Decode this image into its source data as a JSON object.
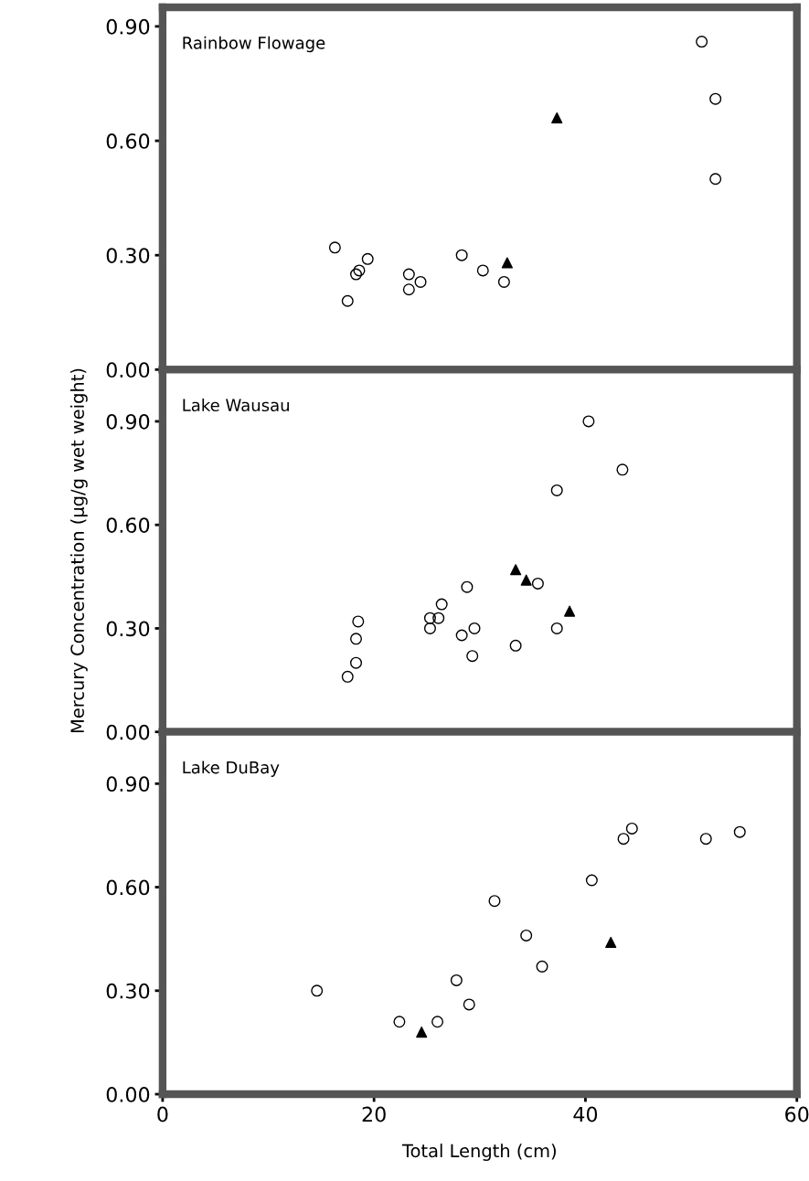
{
  "chart_data": [
    {
      "type": "scatter",
      "title": "Rainbow Flowage",
      "xlim": [
        0,
        60
      ],
      "xticks": [
        0,
        20,
        40,
        60
      ],
      "ylim": [
        0,
        0.95
      ],
      "yticks": [
        {
          "value": 0,
          "label": "0.00"
        },
        {
          "value": 0.3,
          "label": "0.30"
        },
        {
          "value": 0.6,
          "label": "0.60"
        },
        {
          "value": 0.9,
          "label": "0.90"
        }
      ],
      "tick_labels": "y",
      "grid": false,
      "series": [
        {
          "color": "#000000",
          "marker": "circle",
          "x": [
            51.0,
            52.3,
            52.3,
            16.3,
            17.5,
            18.3,
            18.6,
            19.4,
            23.3,
            23.3,
            24.4,
            28.3,
            30.3,
            32.3
          ],
          "values": [
            0.86,
            0.71,
            0.5,
            0.32,
            0.18,
            0.25,
            0.26,
            0.29,
            0.25,
            0.21,
            0.23,
            0.3,
            0.26,
            0.23
          ]
        },
        {
          "color": "#000000",
          "marker": "triangle",
          "x": [
            37.3,
            32.6
          ],
          "values": [
            0.66,
            0.28
          ]
        }
      ]
    },
    {
      "type": "scatter",
      "title": "Lake Wausau",
      "ylabel": "Mercury Concentration (µg/g wet weight)",
      "xlim": [
        0,
        60
      ],
      "xticks": [
        0,
        20,
        40,
        60
      ],
      "ylim": [
        0,
        1.05
      ],
      "yticks": [
        {
          "value": 0,
          "label": "0.00"
        },
        {
          "value": 0.3,
          "label": "0.30"
        },
        {
          "value": 0.6,
          "label": "0.60"
        },
        {
          "value": 0.9,
          "label": "0.90"
        }
      ],
      "tick_labels": "y",
      "grid": false,
      "series": [
        {
          "color": "#000000",
          "marker": "circle",
          "x": [
            40.3,
            43.5,
            37.3,
            35.5,
            28.8,
            26.4,
            25.3,
            26.1,
            25.3,
            18.5,
            18.3,
            18.3,
            17.5,
            28.3,
            29.5,
            29.3,
            33.4,
            37.3
          ],
          "values": [
            0.9,
            0.76,
            0.7,
            0.43,
            0.42,
            0.37,
            0.33,
            0.33,
            0.3,
            0.32,
            0.27,
            0.2,
            0.16,
            0.28,
            0.3,
            0.22,
            0.25,
            0.3
          ]
        },
        {
          "color": "#000000",
          "marker": "triangle",
          "x": [
            33.4,
            34.4,
            38.5
          ],
          "values": [
            0.47,
            0.44,
            0.35
          ]
        }
      ]
    },
    {
      "type": "scatter",
      "title": "Lake DuBay",
      "xlabel": "Total Length (cm)",
      "xlim": [
        0,
        60
      ],
      "xticks": [
        0,
        20,
        40,
        60
      ],
      "ylim": [
        0,
        1.05
      ],
      "yticks": [
        {
          "value": 0,
          "label": "0.00"
        },
        {
          "value": 0.3,
          "label": "0.30"
        },
        {
          "value": 0.6,
          "label": "0.60"
        },
        {
          "value": 0.9,
          "label": "0.90"
        }
      ],
      "grid": false,
      "series": [
        {
          "color": "#000000",
          "marker": "circle",
          "x": [
            14.6,
            22.4,
            26.0,
            27.8,
            29.0,
            31.4,
            34.4,
            35.9,
            40.6,
            43.6,
            44.4,
            51.4,
            54.6
          ],
          "values": [
            0.3,
            0.21,
            0.21,
            0.33,
            0.26,
            0.56,
            0.46,
            0.37,
            0.62,
            0.74,
            0.77,
            0.74,
            0.76
          ]
        },
        {
          "color": "#000000",
          "marker": "triangle",
          "x": [
            24.5,
            42.4
          ],
          "values": [
            0.18,
            0.44
          ]
        }
      ]
    }
  ]
}
